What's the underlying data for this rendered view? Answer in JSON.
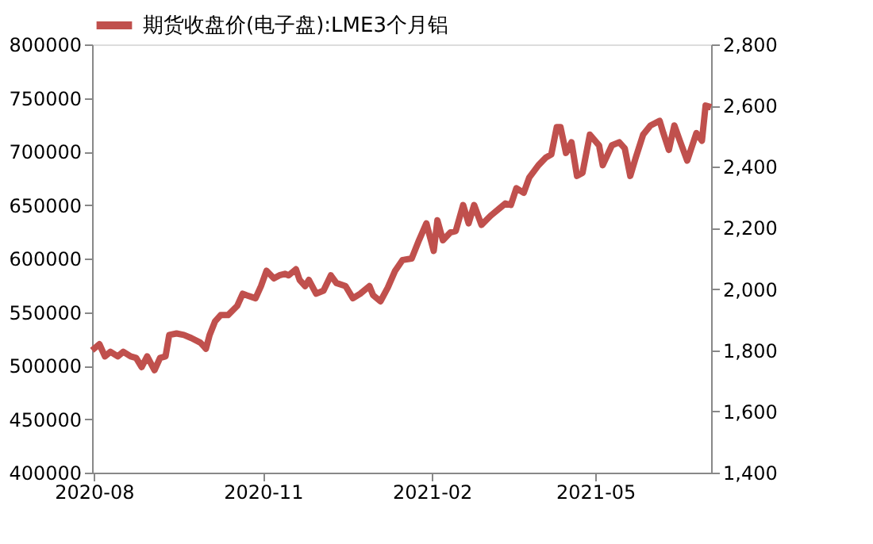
{
  "chart_data": {
    "type": "line",
    "x": [
      "2020-07-31",
      "2020-08-04",
      "2020-08-07",
      "2020-08-10",
      "2020-08-14",
      "2020-08-17",
      "2020-08-21",
      "2020-08-24",
      "2020-08-27",
      "2020-08-30",
      "2020-09-03",
      "2020-09-06",
      "2020-09-09",
      "2020-09-11",
      "2020-09-15",
      "2020-09-19",
      "2020-09-23",
      "2020-09-28",
      "2020-10-01",
      "2020-10-03",
      "2020-10-06",
      "2020-10-09",
      "2020-10-13",
      "2020-10-18",
      "2020-10-21",
      "2020-10-23",
      "2020-10-28",
      "2020-10-31",
      "2020-11-03",
      "2020-11-07",
      "2020-11-10",
      "2020-11-13",
      "2020-11-15",
      "2020-11-19",
      "2020-11-21",
      "2020-11-24",
      "2020-11-26",
      "2020-11-30",
      "2020-12-04",
      "2020-12-08",
      "2020-12-11",
      "2020-12-16",
      "2020-12-20",
      "2020-12-24",
      "2020-12-29",
      "2020-12-31",
      "2021-01-04",
      "2021-01-08",
      "2021-01-12",
      "2021-01-16",
      "2021-01-21",
      "2021-01-25",
      "2021-01-29",
      "2021-02-02",
      "2021-02-04",
      "2021-02-07",
      "2021-02-11",
      "2021-02-14",
      "2021-02-18",
      "2021-02-21",
      "2021-02-24",
      "2021-02-28",
      "2021-03-05",
      "2021-03-10",
      "2021-03-13",
      "2021-03-16",
      "2021-03-19",
      "2021-03-23",
      "2021-03-26",
      "2021-03-31",
      "2021-04-04",
      "2021-04-07",
      "2021-04-10",
      "2021-04-12",
      "2021-04-15",
      "2021-04-18",
      "2021-04-21",
      "2021-04-24",
      "2021-04-28",
      "2021-05-03",
      "2021-05-05",
      "2021-05-10",
      "2021-05-14",
      "2021-05-17",
      "2021-05-20",
      "2021-05-23",
      "2021-05-27",
      "2021-05-31",
      "2021-06-05",
      "2021-06-07",
      "2021-06-10",
      "2021-06-13",
      "2021-06-16",
      "2021-06-20",
      "2021-06-25",
      "2021-06-28",
      "2021-06-30",
      "2021-07-03"
    ],
    "series": [
      {
        "name": "期货收盘价(电子盘):LME3个月铝",
        "color": "#c0504d",
        "axis": "y2",
        "values": [
          1800,
          1820,
          1780,
          1795,
          1780,
          1795,
          1780,
          1775,
          1745,
          1780,
          1735,
          1775,
          1780,
          1850,
          1855,
          1850,
          1840,
          1825,
          1805,
          1850,
          1895,
          1915,
          1915,
          1945,
          1985,
          1980,
          1970,
          2010,
          2060,
          2035,
          2045,
          2050,
          2045,
          2065,
          2030,
          2010,
          2030,
          1985,
          1995,
          2045,
          2020,
          2010,
          1970,
          1985,
          2010,
          1980,
          1960,
          2005,
          2060,
          2095,
          2100,
          2160,
          2215,
          2125,
          2225,
          2160,
          2185,
          2190,
          2275,
          2215,
          2275,
          2210,
          2240,
          2265,
          2280,
          2275,
          2330,
          2315,
          2365,
          2405,
          2430,
          2440,
          2530,
          2530,
          2445,
          2480,
          2370,
          2380,
          2505,
          2470,
          2405,
          2470,
          2480,
          2460,
          2370,
          2430,
          2505,
          2535,
          2550,
          2510,
          2455,
          2535,
          2485,
          2420,
          2510,
          2485,
          2600,
          2595
        ]
      }
    ],
    "xlim": [
      "2020-07-31",
      "2021-07-03"
    ],
    "xticks": [
      "2020-08",
      "2020-11",
      "2021-02",
      "2021-05"
    ],
    "ylim": [
      400000,
      800000
    ],
    "yticks": [
      400000,
      450000,
      500000,
      550000,
      600000,
      650000,
      700000,
      750000,
      800000
    ],
    "y2lim": [
      1400,
      2800
    ],
    "y2ticks": [
      {
        "value": 1400,
        "label": "1,400"
      },
      {
        "value": 1600,
        "label": "1,600"
      },
      {
        "value": 1800,
        "label": "1,800"
      },
      {
        "value": 2000,
        "label": "2,000"
      },
      {
        "value": 2200,
        "label": "2,200"
      },
      {
        "value": 2400,
        "label": "2,400"
      },
      {
        "value": 2600,
        "label": "2,600"
      },
      {
        "value": 2800,
        "label": "2,800"
      }
    ],
    "grid": false,
    "legend": "top",
    "line_style": "solid",
    "marker": "none"
  }
}
